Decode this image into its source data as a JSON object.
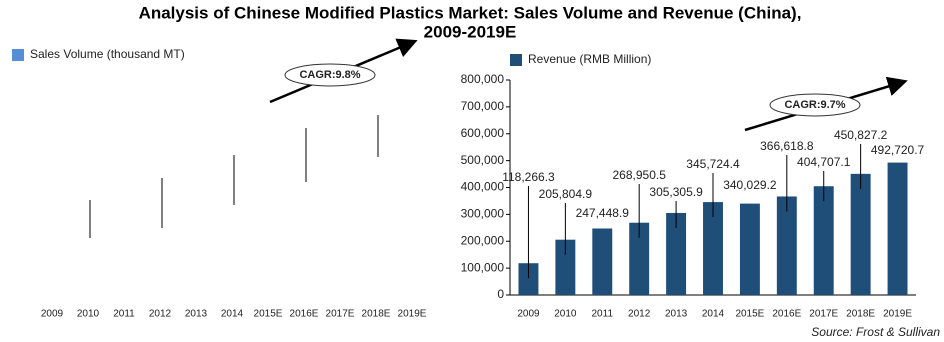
{
  "title": [
    "Analysis of Chinese Modified Plastics Market: Sales Volume and Revenue (China),",
    "2009-2019E"
  ],
  "source": "Source: Frost & Sullivan",
  "chart_data": [
    {
      "type": "bar",
      "categories": [
        "2009",
        "2010",
        "2011",
        "2012",
        "2013",
        "2014",
        "2015E",
        "2016E",
        "2017E",
        "2018E",
        "2019E"
      ],
      "series": [
        {
          "name": "Sales Volume (thousand MT)",
          "color": "#558ed5",
          "values": [
            null,
            null,
            null,
            null,
            null,
            null,
            null,
            null,
            null,
            null,
            null
          ]
        }
      ],
      "annotation": "CAGR:9.8%"
    },
    {
      "type": "bar",
      "categories": [
        "2009",
        "2010",
        "2011",
        "2012",
        "2013",
        "2014",
        "2015E",
        "2016E",
        "2017E",
        "2018E",
        "2019E"
      ],
      "series": [
        {
          "name": "Revenue (RMB Million)",
          "color": "#1f4e79",
          "values": [
            118266.3,
            205804.9,
            247448.9,
            268950.5,
            305305.9,
            345724.4,
            340029.2,
            366618.8,
            404707.1,
            450827.2,
            492720.7
          ],
          "value_labels": [
            "118,266.3",
            "205,804.9",
            "247,448.9",
            "268,950.5",
            "305,305.9",
            "345,724.4",
            "340,029.2",
            "366,618.8",
            "404,707.1",
            "450,827.2",
            "492,720.7"
          ]
        }
      ],
      "ylim": [
        0,
        800000
      ],
      "yticks": [
        0,
        {
          "value": 100000,
          "label": "100,000"
        },
        {
          "value": 200000,
          "label": "200,000"
        },
        {
          "value": 300000,
          "label": "300,000"
        },
        {
          "value": 400000,
          "label": "400,000"
        },
        {
          "value": 500000,
          "label": "500,000"
        },
        {
          "value": 600000,
          "label": "600,000"
        },
        {
          "value": 700000,
          "label": "700,000"
        },
        {
          "value": 800000,
          "label": "800,000"
        }
      ],
      "annotation": "CAGR:9.7%"
    }
  ]
}
